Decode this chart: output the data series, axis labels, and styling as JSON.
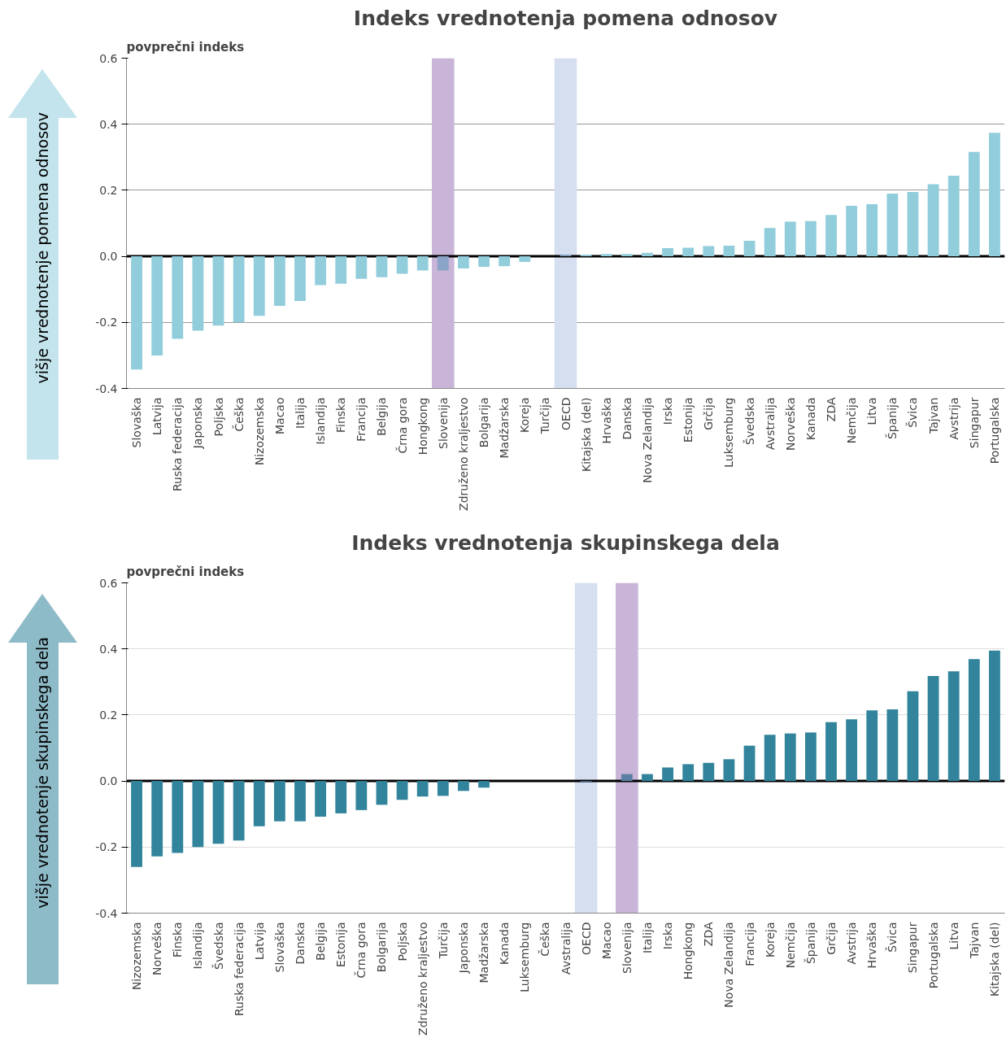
{
  "chart_data": [
    {
      "type": "bar",
      "title": "Indeks vrednotenja pomena odnosov",
      "ylabel": "povprečni indeks",
      "annotations": [
        "višje vrednotenje pomena odnosov"
      ],
      "categories": [
        "Slovaška",
        "Latvija",
        "Ruska federacija",
        "Japonska",
        "Poljska",
        "Češka",
        "Nizozemska",
        "Macao",
        "Italija",
        "Islandija",
        "Finska",
        "Francija",
        "Belgija",
        "Črna gora",
        "Hongkong",
        "Slovenija",
        "Združeno kraljestvo",
        "Bolgarija",
        "Madžarska",
        "Koreja",
        "Turčija",
        "OECD",
        "Kitajska (del)",
        "Hrvaška",
        "Danska",
        "Nova Zelandija",
        "Irska",
        "Estonija",
        "Grčija",
        "Luksemburg",
        "Švedska",
        "Avstralija",
        "Norveška",
        "Kanada",
        "ZDA",
        "Nemčija",
        "Litva",
        "Španija",
        "Švica",
        "Tajvan",
        "Avstrija",
        "Singapur",
        "Portugalska"
      ],
      "values": [
        -0.343,
        -0.3,
        -0.25,
        -0.225,
        -0.21,
        -0.2,
        -0.18,
        -0.15,
        -0.135,
        -0.087,
        -0.083,
        -0.068,
        -0.063,
        -0.053,
        -0.043,
        -0.043,
        -0.037,
        -0.032,
        -0.03,
        -0.017,
        0.0,
        0.005,
        0.005,
        0.007,
        0.007,
        0.011,
        0.025,
        0.026,
        0.031,
        0.032,
        0.047,
        0.086,
        0.105,
        0.107,
        0.125,
        0.153,
        0.158,
        0.19,
        0.195,
        0.218,
        0.244,
        0.316,
        0.374
      ],
      "colors": [
        "#92cddc",
        "#92cddc",
        "#92cddc",
        "#92cddc",
        "#92cddc",
        "#92cddc",
        "#92cddc",
        "#92cddc",
        "#92cddc",
        "#92cddc",
        "#92cddc",
        "#92cddc",
        "#92cddc",
        "#92cddc",
        "#92cddc",
        "#8aa4c8",
        "#92cddc",
        "#92cddc",
        "#92cddc",
        "#92cddc",
        "#92cddc",
        "#7f9fc0",
        "#92cddc",
        "#92cddc",
        "#92cddc",
        "#92cddc",
        "#92cddc",
        "#92cddc",
        "#92cddc",
        "#92cddc",
        "#92cddc",
        "#92cddc",
        "#92cddc",
        "#92cddc",
        "#92cddc",
        "#92cddc",
        "#92cddc",
        "#92cddc",
        "#92cddc",
        "#92cddc",
        "#92cddc",
        "#92cddc",
        "#92cddc"
      ],
      "ylim": [
        -0.4,
        0.6
      ],
      "yticks": [
        {
          "value": -0.4,
          "label": "-0.4"
        },
        {
          "value": -0.2,
          "label": "-0.2"
        },
        {
          "value": 0,
          "label": "0.0"
        },
        {
          "value": 0.2,
          "label": "0.2"
        },
        {
          "value": 0.4,
          "label": "0.4"
        },
        {
          "value": 0.6,
          "label": "0.6"
        }
      ],
      "grid": "y",
      "bands": [
        {
          "axis": "x",
          "from": "Slovenija",
          "to": "Slovenija",
          "color": "#c9b5d8"
        },
        {
          "axis": "x",
          "from": "OECD",
          "to": "OECD",
          "color": "#d6dff0"
        }
      ]
    },
    {
      "type": "bar",
      "title": "Indeks vrednotenja skupinskega dela",
      "ylabel": "povprečni indeks",
      "annotations": [
        "višje vrednotenje skupinskega dela"
      ],
      "categories": [
        "Nizozemska",
        "Norveška",
        "Finska",
        "Islandija",
        "Švedska",
        "Ruska federacija",
        "Latvija",
        "Slovaška",
        "Danska",
        "Belgija",
        "Estonija",
        "Črna gora",
        "Bolgarija",
        "Poljska",
        "Združeno kraljestvo",
        "Turčija",
        "Japonska",
        "Madžarska",
        "Kanada",
        "Luksemburg",
        "Češka",
        "Avstralija",
        "OECD",
        "Macao",
        "Slovenija",
        "Italija",
        "Irska",
        "Hongkong",
        "ZDA",
        "Nova Zelandija",
        "Francija",
        "Koreja",
        "Nemčija",
        "Španija",
        "Grčija",
        "Avstrija",
        "Hrvaška",
        "Švica",
        "Singapur",
        "Portugalska",
        "Litva",
        "Tajvan",
        "Kitajska (del)"
      ],
      "values": [
        -0.26,
        -0.228,
        -0.218,
        -0.2,
        -0.19,
        -0.18,
        -0.137,
        -0.122,
        -0.122,
        -0.108,
        -0.098,
        -0.088,
        -0.072,
        -0.057,
        -0.047,
        -0.045,
        -0.03,
        -0.02,
        0.0,
        0.0,
        0.0,
        0.0,
        -0.003,
        0.0,
        0.021,
        0.021,
        0.041,
        0.051,
        0.055,
        0.066,
        0.107,
        0.14,
        0.144,
        0.147,
        0.178,
        0.187,
        0.214,
        0.217,
        0.272,
        0.318,
        0.332,
        0.369,
        0.395
      ],
      "colors": [
        "#31849b",
        "#31849b",
        "#31849b",
        "#31849b",
        "#31849b",
        "#31849b",
        "#31849b",
        "#31849b",
        "#31849b",
        "#31849b",
        "#31849b",
        "#31849b",
        "#31849b",
        "#31849b",
        "#31849b",
        "#31849b",
        "#31849b",
        "#31849b",
        "#31849b",
        "#31849b",
        "#31849b",
        "#31849b",
        "#4a6f96",
        "#31849b",
        "#5a7fa3",
        "#31849b",
        "#31849b",
        "#31849b",
        "#31849b",
        "#31849b",
        "#31849b",
        "#31849b",
        "#31849b",
        "#31849b",
        "#31849b",
        "#31849b",
        "#31849b",
        "#31849b",
        "#31849b",
        "#31849b",
        "#31849b",
        "#31849b",
        "#31849b"
      ],
      "ylim": [
        -0.4,
        0.6
      ],
      "yticks": [
        {
          "value": -0.4,
          "label": "-0.4"
        },
        {
          "value": -0.2,
          "label": "-0.2"
        },
        {
          "value": 0,
          "label": "0.0"
        },
        {
          "value": 0.2,
          "label": "0.2"
        },
        {
          "value": 0.4,
          "label": "0.4"
        },
        {
          "value": 0.6,
          "label": "0.6"
        }
      ],
      "grid": "y",
      "bands": [
        {
          "axis": "x",
          "from": "OECD",
          "to": "OECD",
          "color": "#d6dff0"
        },
        {
          "axis": "x",
          "from": "Slovenija",
          "to": "Slovenija",
          "color": "#c9b5d8"
        }
      ]
    }
  ]
}
